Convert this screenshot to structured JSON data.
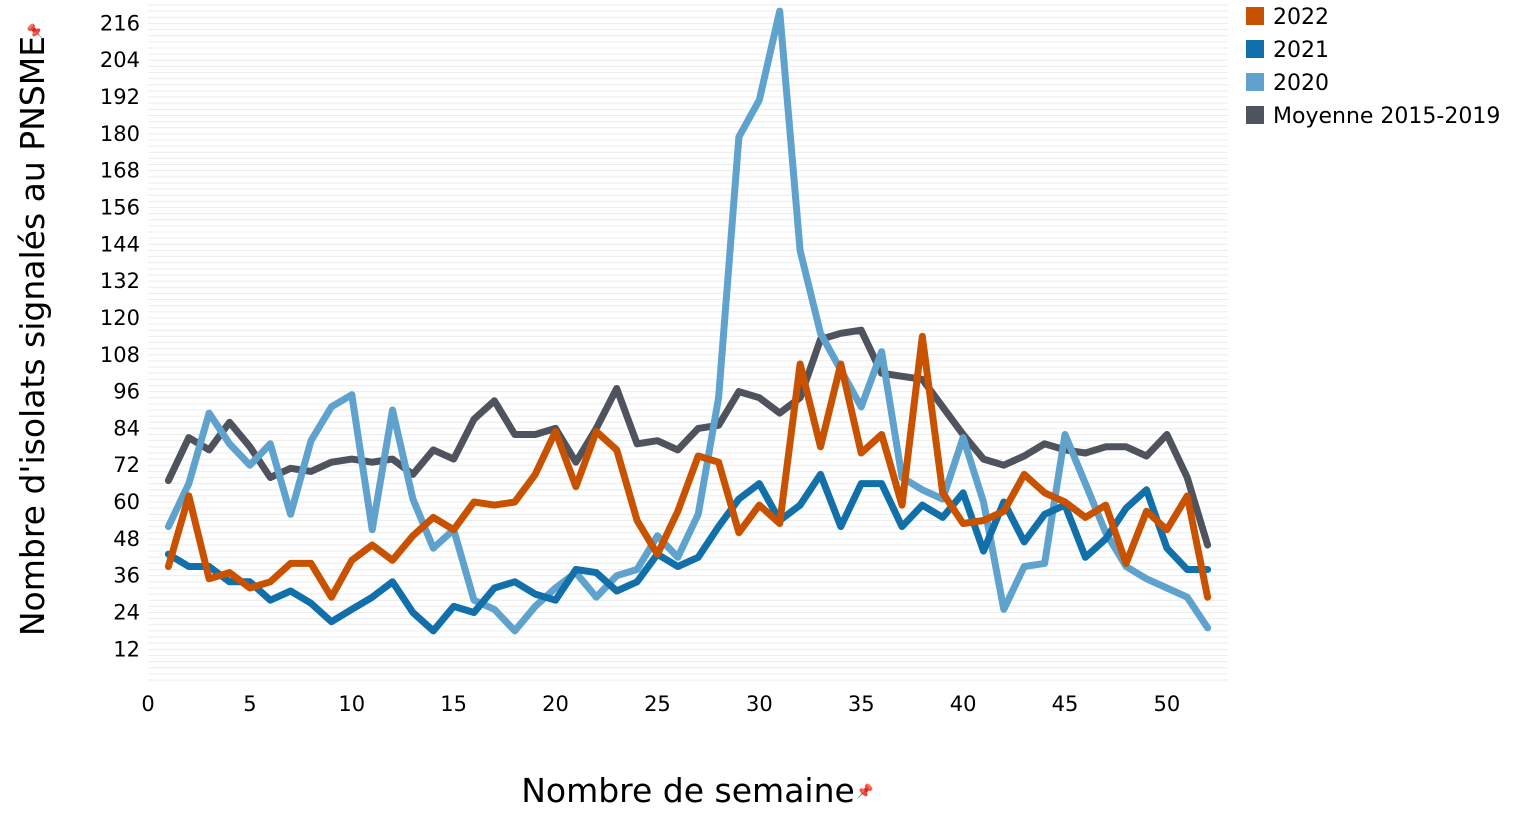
{
  "chart_data": {
    "type": "line",
    "xlabel": "Nombre de semaine",
    "ylabel": "Nombre d'isolats signalés au PNSME",
    "xlim": [
      0,
      53
    ],
    "ylim": [
      2,
      222
    ],
    "xticks": [
      0,
      5,
      10,
      15,
      20,
      25,
      30,
      35,
      40,
      45,
      50
    ],
    "yticks": [
      12,
      24,
      36,
      48,
      60,
      72,
      84,
      96,
      108,
      120,
      132,
      144,
      156,
      168,
      180,
      192,
      204,
      216
    ],
    "grid": "horizontal",
    "legend_position": "top-right",
    "x": [
      1,
      2,
      3,
      4,
      5,
      6,
      7,
      8,
      9,
      10,
      11,
      12,
      13,
      14,
      15,
      16,
      17,
      18,
      19,
      20,
      21,
      22,
      23,
      24,
      25,
      26,
      27,
      28,
      29,
      30,
      31,
      32,
      33,
      34,
      35,
      36,
      37,
      38,
      39,
      40,
      41,
      42,
      43,
      44,
      45,
      46,
      47,
      48,
      49,
      50,
      51,
      52
    ],
    "series": [
      {
        "name": "2022",
        "color": "#C85200",
        "values": [
          39,
          62,
          35,
          37,
          32,
          34,
          40,
          40,
          29,
          41,
          46,
          41,
          49,
          55,
          51,
          60,
          59,
          60,
          69,
          83,
          65,
          83,
          77,
          54,
          43,
          57,
          75,
          73,
          50,
          59,
          53,
          105,
          78,
          105,
          76,
          82,
          59,
          114,
          63,
          53,
          54,
          57,
          69,
          63,
          60,
          55,
          59,
          40,
          57,
          51,
          62,
          29
        ]
      },
      {
        "name": "2021",
        "color": "#1170AA",
        "values": [
          43,
          39,
          39,
          34,
          34,
          28,
          31,
          27,
          21,
          25,
          29,
          34,
          24,
          18,
          26,
          24,
          32,
          34,
          30,
          28,
          38,
          37,
          31,
          34,
          43,
          39,
          42,
          52,
          61,
          66,
          54,
          59,
          69,
          52,
          66,
          66,
          52,
          59,
          55,
          63,
          44,
          60,
          47,
          56,
          59,
          42,
          48,
          58,
          64,
          45,
          38,
          38
        ]
      },
      {
        "name": "2020",
        "color": "#5FA2CE",
        "values": [
          52,
          66,
          89,
          79,
          72,
          79,
          56,
          80,
          91,
          95,
          51,
          90,
          61,
          45,
          51,
          28,
          25,
          18,
          26,
          32,
          37,
          29,
          36,
          38,
          49,
          42,
          56,
          94,
          179,
          191,
          220,
          142,
          115,
          103,
          91,
          109,
          68,
          64,
          61,
          81,
          60,
          25,
          39,
          40,
          82,
          66,
          50,
          39,
          35,
          32,
          29,
          19
        ]
      },
      {
        "name": "Moyenne 2015-2019",
        "color": "#4F535E",
        "values": [
          67,
          81,
          77,
          86,
          78,
          68,
          71,
          70,
          73,
          74,
          73,
          74,
          69,
          77,
          74,
          87,
          93,
          82,
          82,
          84,
          73,
          84,
          97,
          79,
          80,
          77,
          84,
          85,
          96,
          94,
          89,
          94,
          113,
          115,
          116,
          102,
          101,
          100,
          91,
          82,
          74,
          72,
          75,
          79,
          77,
          76,
          78,
          78,
          75,
          82,
          68,
          46
        ]
      }
    ]
  }
}
